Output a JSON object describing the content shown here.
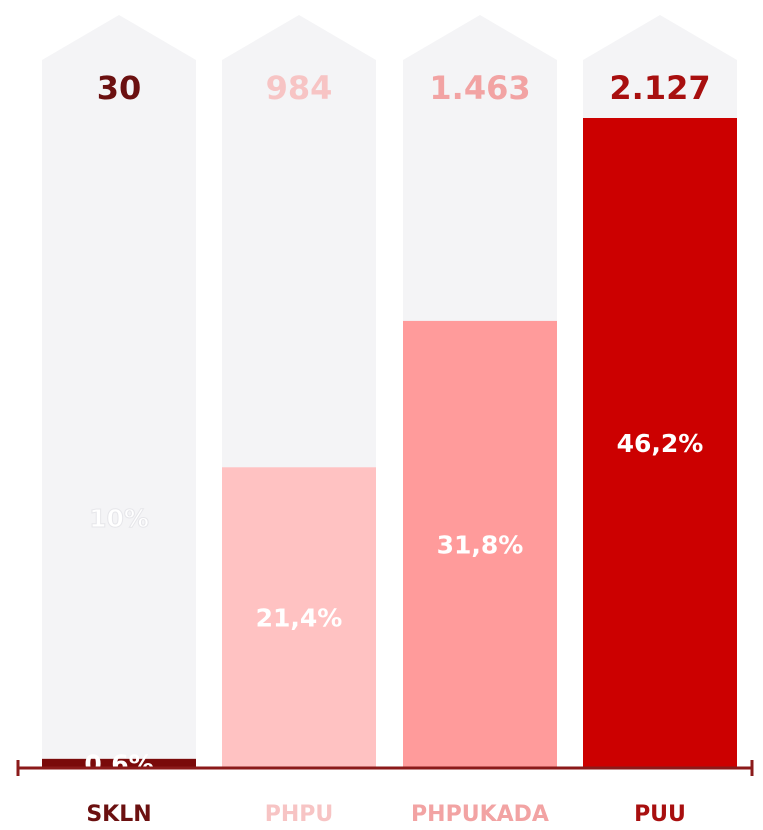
{
  "chart_data": {
    "type": "bar",
    "categories": [
      "SKLN",
      "PHPU",
      "PHPUKADA",
      "PUU"
    ],
    "values": [
      30,
      984,
      1463,
      2127
    ],
    "value_labels": [
      "30",
      "984",
      "1.463",
      "2.127"
    ],
    "shares": [
      0.6,
      21.4,
      31.8,
      46.2
    ],
    "share_labels": [
      "0,6%",
      "21,4%",
      "31,8%",
      "46,2%"
    ],
    "colors": [
      "#7a0a0a",
      "#ffc2c2",
      "#ff9b9b",
      "#cc0000"
    ],
    "label_colors": [
      "#6b1010",
      "#f7c4c4",
      "#f2a3a3",
      "#a80f0f"
    ],
    "annotation": "10%"
  }
}
